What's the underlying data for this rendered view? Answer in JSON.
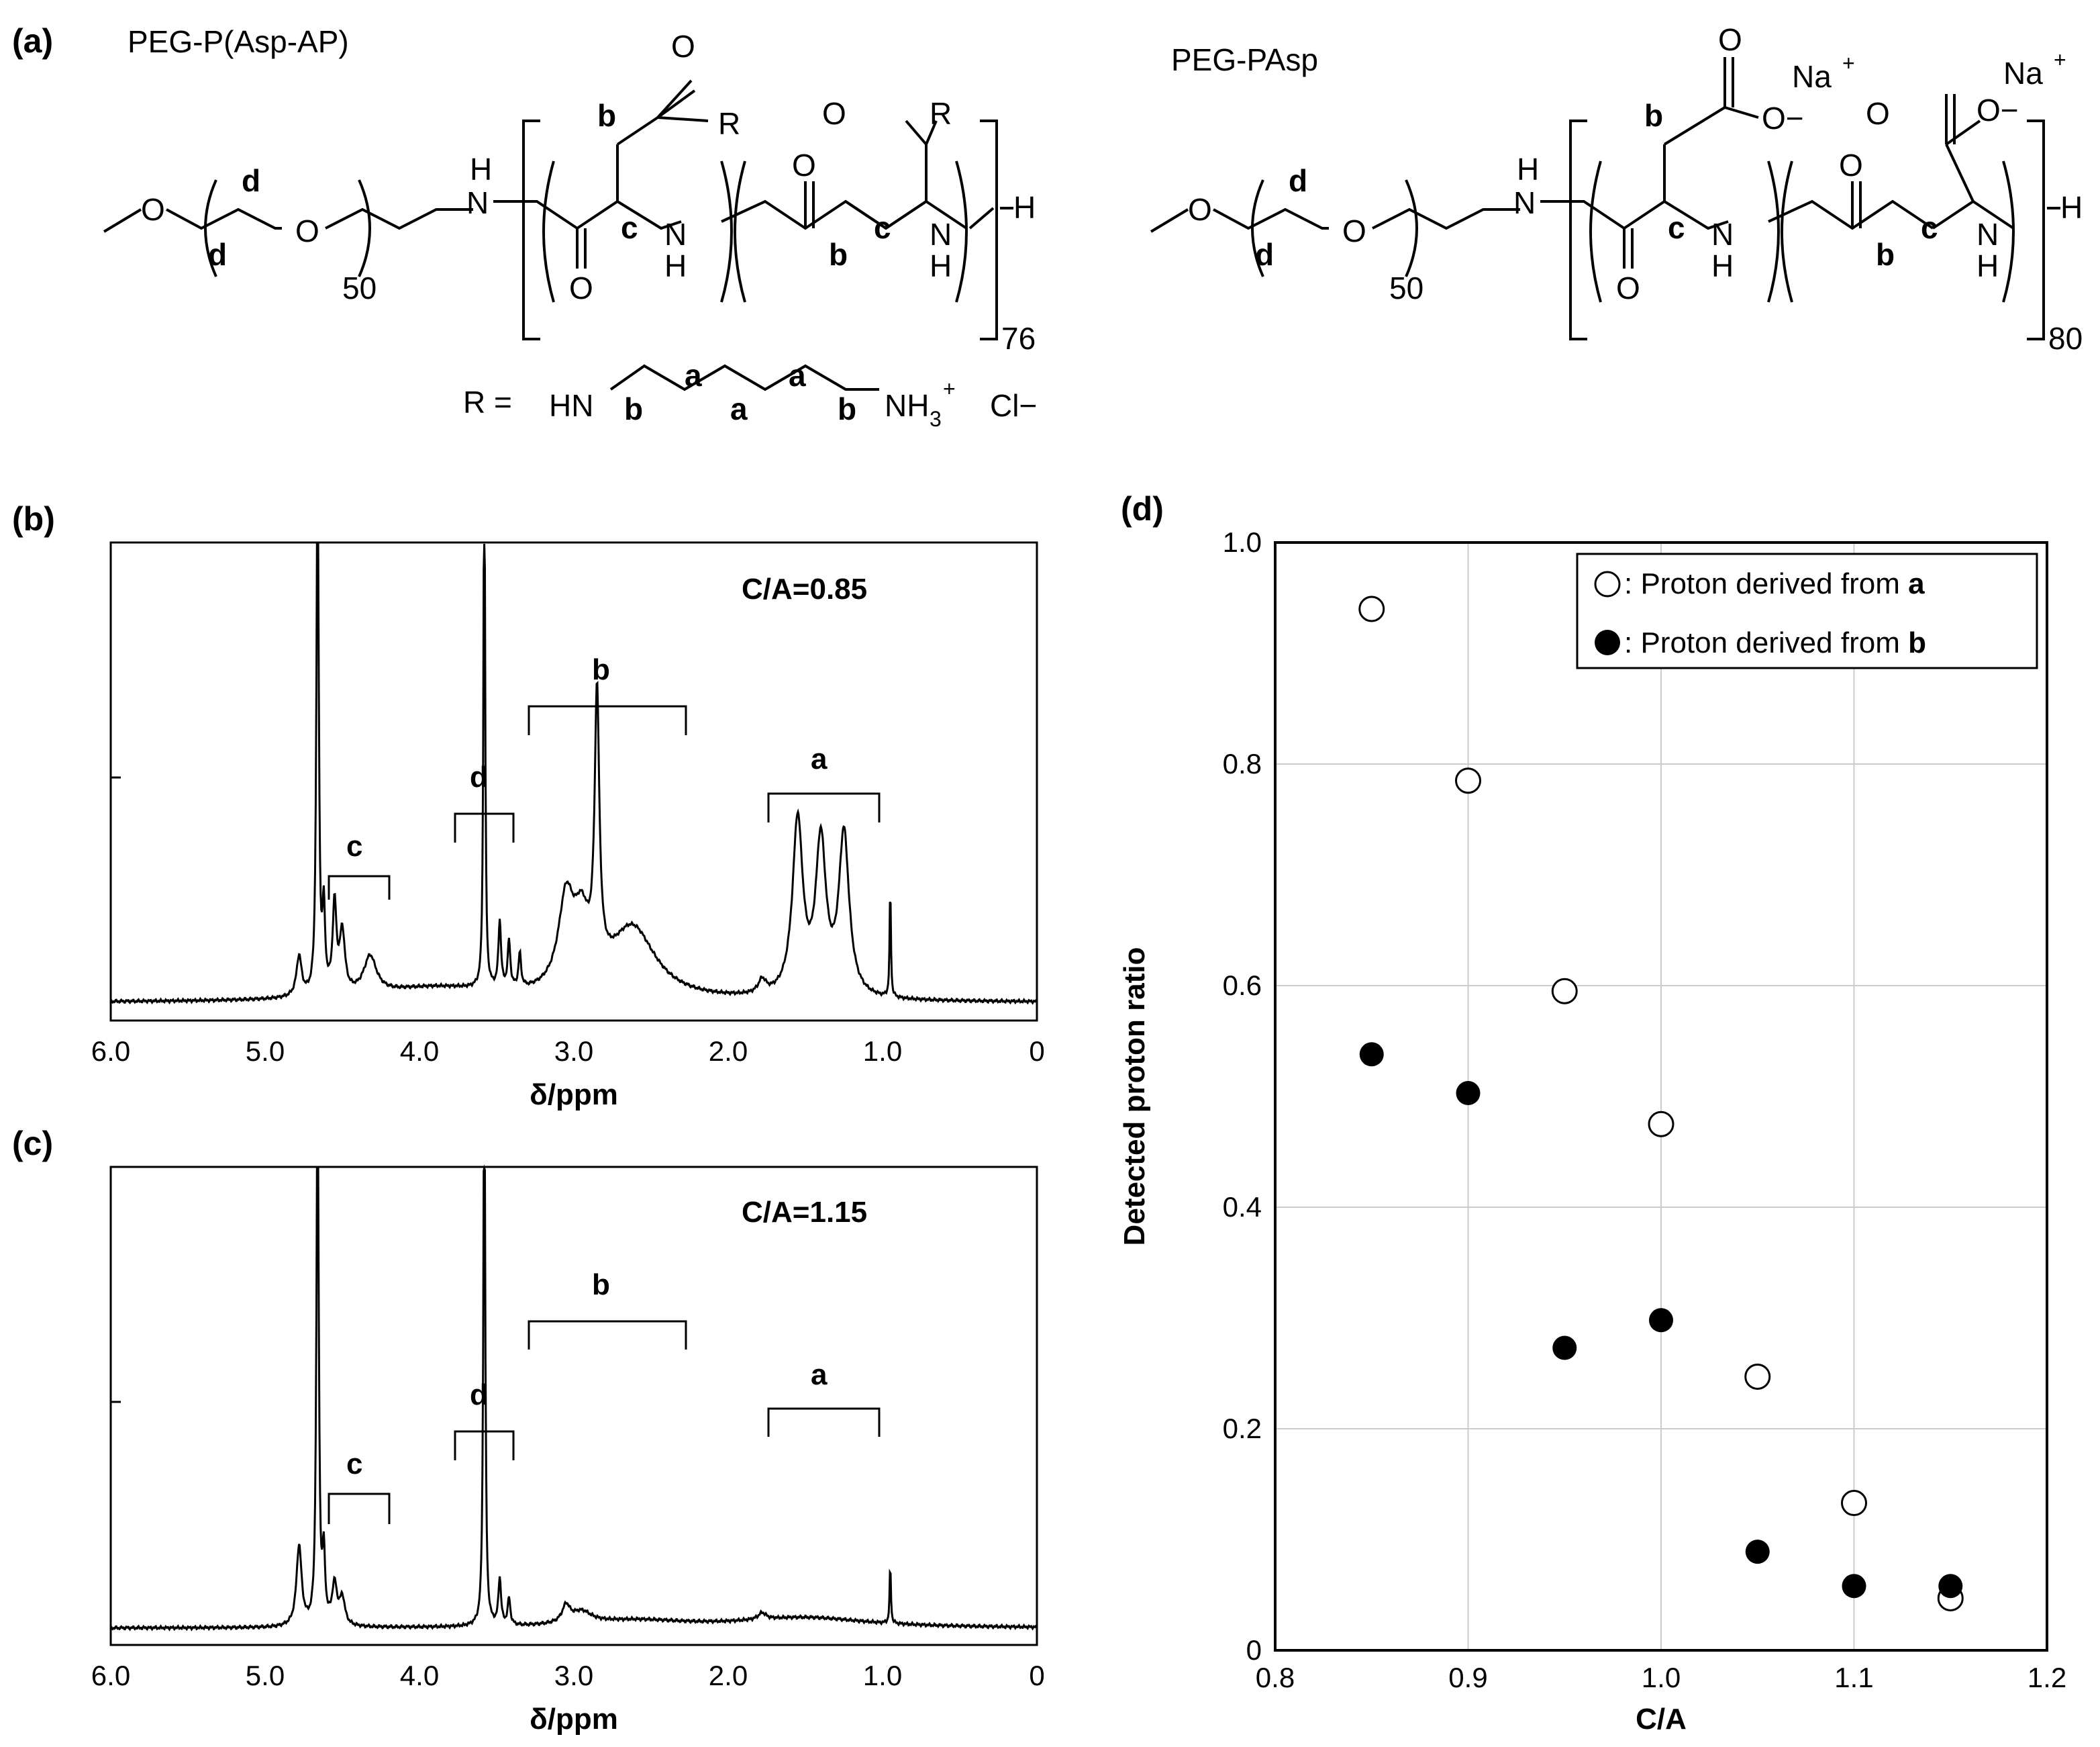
{
  "panel_a": {
    "label": "(a)",
    "left": {
      "name": "PEG-P(Asp-AP)",
      "peg_repeat": "50",
      "poly_repeat": "76",
      "r_prefix": "R =",
      "r_hn": "HN",
      "r_nh3": "NH",
      "r_nh3_sub": "3",
      "r_plus": "+",
      "r_cl": "Cl−"
    },
    "right": {
      "name": "PEG-PAsp",
      "peg_repeat": "50",
      "poly_repeat": "80",
      "na": "Na",
      "na_plus": "+",
      "o_minus": "O−"
    },
    "atoms": {
      "O": "O",
      "N": "N",
      "H": "H",
      "NH": "NH",
      "R": "R"
    },
    "site_labels": {
      "a": "a",
      "b": "b",
      "c": "c",
      "d": "d"
    }
  },
  "panel_b": {
    "label": "(b)",
    "annotation": "C/A=0.85",
    "xlabel": "δ/ppm",
    "xticks": [
      "6.0",
      "5.0",
      "4.0",
      "3.0",
      "2.0",
      "1.0",
      "0"
    ],
    "brackets": [
      "c",
      "d",
      "b",
      "a"
    ]
  },
  "panel_c": {
    "label": "(c)",
    "annotation": "C/A=1.15",
    "xlabel": "δ/ppm",
    "xticks": [
      "6.0",
      "5.0",
      "4.0",
      "3.0",
      "2.0",
      "1.0",
      "0"
    ],
    "brackets": [
      "c",
      "d",
      "b",
      "a"
    ]
  },
  "panel_d": {
    "label": "(d)"
  },
  "chart_data": {
    "type": "scatter",
    "xlabel": "C/A",
    "ylabel": "Detected proton ratio",
    "xlim": [
      0.8,
      1.2
    ],
    "ylim": [
      0,
      1.0
    ],
    "xticks": [
      "0.8",
      "0.9",
      "1.0",
      "1.1",
      "1.2"
    ],
    "yticks": [
      "0",
      "0.2",
      "0.4",
      "0.6",
      "0.8",
      "1.0"
    ],
    "grid": true,
    "legend_position": "top-right",
    "series": [
      {
        "name": "Proton derived from a",
        "legend_prefix": ": Proton derived from ",
        "legend_key": "a",
        "marker": "open-circle",
        "x": [
          0.85,
          0.9,
          0.95,
          1.0,
          1.05,
          1.1,
          1.15
        ],
        "y": [
          0.94,
          0.785,
          0.595,
          0.475,
          0.247,
          0.133,
          0.047
        ]
      },
      {
        "name": "Proton derived from b",
        "legend_prefix": ": Proton derived from ",
        "legend_key": "b",
        "marker": "filled-circle",
        "x": [
          0.85,
          0.9,
          0.95,
          1.0,
          1.05,
          1.1,
          1.15
        ],
        "y": [
          0.538,
          0.503,
          0.273,
          0.298,
          0.089,
          0.058,
          0.058
        ]
      }
    ]
  }
}
